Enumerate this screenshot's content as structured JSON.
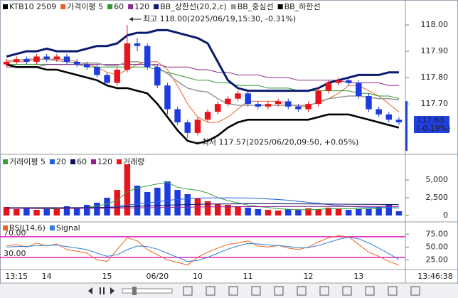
{
  "chart_data": [
    {
      "type": "candlestick",
      "title": "KTB10 2509",
      "high_note": "최고 118.00(2025/06/19,15:30, -0.31%)",
      "low_note": "최저 117.57(2025/06/20,09:50, +0.05%)",
      "high_index": 12,
      "low_index": 18,
      "last_price": 117.63,
      "last_change": "(-0.19%)",
      "up_color": "#e8141c",
      "down_color": "#1c3ce0",
      "last_color": "#1f3fe0",
      "ylim": [
        117.514,
        118.073
      ],
      "yticks": [
        {
          "value": 117.7,
          "label": "117.70"
        },
        {
          "value": 117.8,
          "label": "117.80"
        },
        {
          "value": 117.9,
          "label": "117.90"
        },
        {
          "value": 118.0,
          "label": "118.00"
        }
      ],
      "open": [
        117.85,
        117.86,
        117.87,
        117.86,
        117.88,
        117.87,
        117.88,
        117.86,
        117.85,
        117.84,
        117.81,
        117.78,
        117.83,
        117.93,
        117.92,
        117.84,
        117.77,
        117.68,
        117.63,
        117.59,
        117.64,
        117.67,
        117.7,
        117.72,
        117.74,
        117.7,
        117.69,
        117.7,
        117.71,
        117.69,
        117.68,
        117.7,
        117.75,
        117.78,
        117.79,
        117.78,
        117.73,
        117.68,
        117.66,
        117.64
      ],
      "high": [
        117.87,
        117.88,
        117.88,
        117.89,
        117.89,
        117.89,
        117.89,
        117.87,
        117.86,
        117.85,
        117.82,
        117.84,
        118.0,
        117.95,
        117.93,
        117.85,
        117.78,
        117.69,
        117.64,
        117.65,
        117.68,
        117.71,
        117.73,
        117.75,
        117.75,
        117.71,
        117.71,
        117.72,
        117.72,
        117.7,
        117.71,
        117.76,
        117.79,
        117.8,
        117.8,
        117.79,
        117.74,
        117.69,
        117.67,
        117.65
      ],
      "low": [
        117.84,
        117.85,
        117.85,
        117.85,
        117.86,
        117.86,
        117.85,
        117.84,
        117.83,
        117.8,
        117.77,
        117.77,
        117.82,
        117.9,
        117.83,
        117.76,
        117.66,
        117.62,
        117.57,
        117.58,
        117.63,
        117.66,
        117.69,
        117.71,
        117.69,
        117.68,
        117.68,
        117.69,
        117.68,
        117.67,
        117.67,
        117.69,
        117.74,
        117.77,
        117.77,
        117.72,
        117.67,
        117.65,
        117.63,
        117.62
      ],
      "close": [
        117.86,
        117.87,
        117.86,
        117.88,
        117.87,
        117.88,
        117.86,
        117.85,
        117.84,
        117.81,
        117.78,
        117.83,
        117.93,
        117.92,
        117.84,
        117.77,
        117.68,
        117.63,
        117.59,
        117.64,
        117.67,
        117.7,
        117.72,
        117.74,
        117.7,
        117.69,
        117.7,
        117.71,
        117.69,
        117.68,
        117.7,
        117.75,
        117.78,
        117.79,
        117.78,
        117.73,
        117.68,
        117.66,
        117.64,
        117.63
      ],
      "overlays": [
        {
          "name": "가격이평 5",
          "color": "#e8602c",
          "values": [
            117.86,
            117.86,
            117.86,
            117.87,
            117.87,
            117.87,
            117.87,
            117.86,
            117.85,
            117.84,
            117.82,
            117.81,
            117.83,
            117.85,
            117.86,
            117.86,
            117.83,
            117.77,
            117.7,
            117.65,
            117.63,
            117.63,
            117.65,
            117.68,
            117.71,
            117.71,
            117.71,
            117.71,
            117.7,
            117.69,
            117.69,
            117.71,
            117.72,
            117.74,
            117.77,
            117.77,
            117.75,
            117.73,
            117.7,
            117.67
          ]
        },
        {
          "name": "60",
          "color": "#2e9a2e",
          "values": [
            117.85,
            117.85,
            117.85,
            117.85,
            117.85,
            117.85,
            117.85,
            117.85,
            117.84,
            117.84,
            117.84,
            117.84,
            117.84,
            117.84,
            117.84,
            117.83,
            117.82,
            117.81,
            117.8,
            117.79,
            117.79,
            117.78,
            117.78,
            117.77,
            117.77,
            117.77,
            117.76,
            117.76,
            117.76,
            117.75,
            117.75,
            117.75,
            117.75,
            117.75,
            117.75,
            117.74,
            117.74,
            117.73,
            117.73,
            117.72
          ]
        },
        {
          "name": "120",
          "color": "#8a2a8a",
          "values": [
            117.84,
            117.84,
            117.84,
            117.84,
            117.85,
            117.85,
            117.85,
            117.85,
            117.85,
            117.85,
            117.85,
            117.85,
            117.85,
            117.85,
            117.85,
            117.85,
            117.84,
            117.84,
            117.84,
            117.83,
            117.83,
            117.82,
            117.82,
            117.81,
            117.81,
            117.81,
            117.8,
            117.8,
            117.8,
            117.79,
            117.79,
            117.79,
            117.79,
            117.79,
            117.78,
            117.78,
            117.78,
            117.78,
            117.77,
            117.77
          ]
        },
        {
          "name": "BB_상한선(20,2,c)",
          "color": "#0a1a6e",
          "values": [
            117.88,
            117.89,
            117.9,
            117.9,
            117.91,
            117.9,
            117.9,
            117.9,
            117.91,
            117.92,
            117.92,
            117.93,
            117.96,
            117.97,
            117.97,
            117.98,
            117.98,
            117.97,
            117.96,
            117.95,
            117.93,
            117.86,
            117.79,
            117.76,
            117.75,
            117.75,
            117.75,
            117.75,
            117.75,
            117.75,
            117.75,
            117.76,
            117.78,
            117.79,
            117.8,
            117.81,
            117.81,
            117.81,
            117.82,
            117.82
          ]
        },
        {
          "name": "BB_중심선",
          "color": "#9a9a9a",
          "values": [
            117.865,
            117.865,
            117.87,
            117.87,
            117.87,
            117.865,
            117.86,
            117.855,
            117.855,
            117.855,
            117.845,
            117.845,
            117.86,
            117.86,
            117.855,
            117.84,
            117.815,
            117.785,
            117.76,
            117.75,
            117.745,
            117.72,
            117.7,
            117.695,
            117.695,
            117.695,
            117.695,
            117.695,
            117.695,
            117.695,
            117.695,
            117.705,
            117.72,
            117.725,
            117.73,
            117.73,
            117.725,
            117.72,
            117.72,
            117.715
          ]
        },
        {
          "name": "BB_하한선",
          "color": "#000000",
          "values": [
            117.85,
            117.84,
            117.84,
            117.84,
            117.83,
            117.83,
            117.82,
            117.81,
            117.8,
            117.79,
            117.77,
            117.76,
            117.76,
            117.75,
            117.74,
            117.7,
            117.65,
            117.6,
            117.56,
            117.55,
            117.56,
            117.58,
            117.61,
            117.63,
            117.64,
            117.64,
            117.64,
            117.64,
            117.64,
            117.64,
            117.64,
            117.65,
            117.66,
            117.66,
            117.66,
            117.65,
            117.64,
            117.63,
            117.62,
            117.61
          ]
        }
      ]
    },
    {
      "type": "bar",
      "ylim": [
        -700,
        7300
      ],
      "yticks": [
        0,
        {
          "value": 2500,
          "label": "2,500"
        },
        {
          "value": 5000,
          "label": "5,000"
        }
      ],
      "overlays": [
        {
          "name": "거래이평 5",
          "color": "#3aa03a",
          "values": [
            1100,
            1050,
            1000,
            980,
            960,
            940,
            1000,
            1050,
            1150,
            1300,
            1640,
            2140,
            3320,
            3860,
            4160,
            4440,
            4680,
            3960,
            3720,
            3540,
            3160,
            2520,
            2100,
            1760,
            1480,
            1280,
            1120,
            960,
            880,
            820,
            840,
            860,
            940,
            960,
            960,
            940,
            960,
            1000,
            1140,
            1040
          ]
        },
        {
          "name": "20",
          "color": "#2060e0",
          "values": [
            1000,
            1000,
            1000,
            1000,
            1000,
            1000,
            1010,
            1020,
            1050,
            1090,
            1150,
            1250,
            1480,
            1640,
            1780,
            1930,
            2120,
            2260,
            2360,
            2430,
            2470,
            2480,
            2490,
            2480,
            2460,
            2400,
            2330,
            2250,
            2150,
            2000,
            1850,
            1700,
            1540,
            1400,
            1280,
            1200,
            1150,
            1120,
            1100,
            1080
          ]
        },
        {
          "name": "60",
          "color": "#101060",
          "values": [
            1100,
            1100,
            1100,
            1100,
            1100,
            1100,
            1100,
            1110,
            1120,
            1130,
            1150,
            1180,
            1250,
            1300,
            1340,
            1390,
            1450,
            1500,
            1540,
            1570,
            1600,
            1620,
            1630,
            1640,
            1650,
            1650,
            1650,
            1650,
            1640,
            1640,
            1630,
            1620,
            1610,
            1600,
            1590,
            1580,
            1570,
            1560,
            1550,
            1540
          ]
        },
        {
          "name": "120",
          "color": "#902090",
          "values": [
            1000,
            1000,
            1000,
            1000,
            1000,
            1000,
            1000,
            1000,
            1010,
            1010,
            1020,
            1030,
            1060,
            1080,
            1100,
            1120,
            1140,
            1160,
            1180,
            1200,
            1210,
            1220,
            1230,
            1240,
            1250,
            1250,
            1260,
            1260,
            1260,
            1270,
            1270,
            1270,
            1270,
            1270,
            1270,
            1270,
            1270,
            1270,
            1280,
            1280
          ]
        }
      ],
      "series": [
        {
          "name": "거래량",
          "color": "#e8141c",
          "values": [
            1200,
            900,
            1100,
            800,
            1000,
            900,
            1300,
            1100,
            1500,
            1800,
            2500,
            3600,
            7200,
            4200,
            3300,
            3900,
            4800,
            3600,
            3000,
            2400,
            2000,
            1600,
            1500,
            1300,
            1100,
            900,
            800,
            700,
            900,
            800,
            1000,
            900,
            1100,
            1000,
            800,
            900,
            1000,
            1200,
            1600,
            600
          ]
        }
      ]
    },
    {
      "type": "line",
      "ylim": [
        9,
        92
      ],
      "yticks": [
        {
          "value": 25,
          "label": "25.00"
        },
        {
          "value": 50,
          "label": "50.00"
        },
        {
          "value": 75,
          "label": "75.00"
        }
      ],
      "ref_lines": [
        {
          "value": 70,
          "label": "70.00"
        },
        {
          "value": 30,
          "label": "30.00"
        }
      ],
      "ref_color": "#e020c0",
      "categories": [
        null,
        "13:15",
        null,
        null,
        "14",
        null,
        null,
        null,
        null,
        null,
        "15",
        null,
        null,
        null,
        null,
        "06/20",
        null,
        null,
        null,
        "10",
        null,
        null,
        null,
        null,
        "11",
        null,
        null,
        null,
        null,
        null,
        "12",
        null,
        null,
        null,
        null,
        "13",
        null,
        null,
        null,
        null
      ],
      "last_time": "13:46:38",
      "series": [
        {
          "name": "RSI(14,6)",
          "color": "#f06020",
          "values": [
            52,
            55,
            50,
            58,
            52,
            56,
            45,
            42,
            38,
            25,
            22,
            45,
            68,
            62,
            45,
            35,
            25,
            20,
            15,
            30,
            40,
            48,
            55,
            58,
            62,
            52,
            50,
            53,
            48,
            45,
            50,
            60,
            68,
            72,
            70,
            55,
            40,
            32,
            22,
            15
          ]
        },
        {
          "name": "Signal",
          "color": "#2f7fd8",
          "values": [
            50,
            51,
            51,
            53,
            53,
            54,
            51,
            48,
            45,
            38,
            32,
            35,
            45,
            52,
            51,
            46,
            38,
            30,
            22,
            24,
            30,
            38,
            46,
            52,
            57,
            56,
            54,
            53,
            51,
            49,
            49,
            53,
            59,
            65,
            69,
            66,
            58,
            48,
            37,
            26
          ]
        }
      ]
    }
  ]
}
